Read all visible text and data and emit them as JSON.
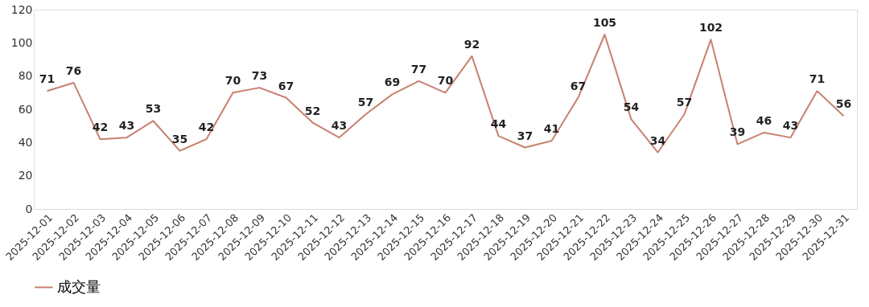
{
  "chart_data": {
    "type": "line",
    "categories": [
      "2025-12-01",
      "2025-12-02",
      "2025-12-03",
      "2025-12-04",
      "2025-12-05",
      "2025-12-06",
      "2025-12-07",
      "2025-12-08",
      "2025-12-09",
      "2025-12-10",
      "2025-12-11",
      "2025-12-12",
      "2025-12-13",
      "2025-12-14",
      "2025-12-15",
      "2025-12-16",
      "2025-12-17",
      "2025-12-18",
      "2025-12-19",
      "2025-12-20",
      "2025-12-21",
      "2025-12-22",
      "2025-12-23",
      "2025-12-24",
      "2025-12-25",
      "2025-12-26",
      "2025-12-27",
      "2025-12-28",
      "2025-12-29",
      "2025-12-30",
      "2025-12-31"
    ],
    "series": [
      {
        "name": "成交量",
        "color": "#c8806e",
        "values": [
          71,
          76,
          42,
          43,
          53,
          35,
          42,
          70,
          73,
          67,
          52,
          43,
          57,
          69,
          77,
          70,
          92,
          44,
          37,
          41,
          67,
          105,
          54,
          34,
          57,
          102,
          39,
          46,
          43,
          71,
          56
        ]
      }
    ],
    "ylim": [
      0,
      120
    ],
    "yticks": [
      0,
      20,
      40,
      60,
      80,
      100,
      120
    ],
    "grid": false,
    "legend": "bottom",
    "data_labels": true
  }
}
